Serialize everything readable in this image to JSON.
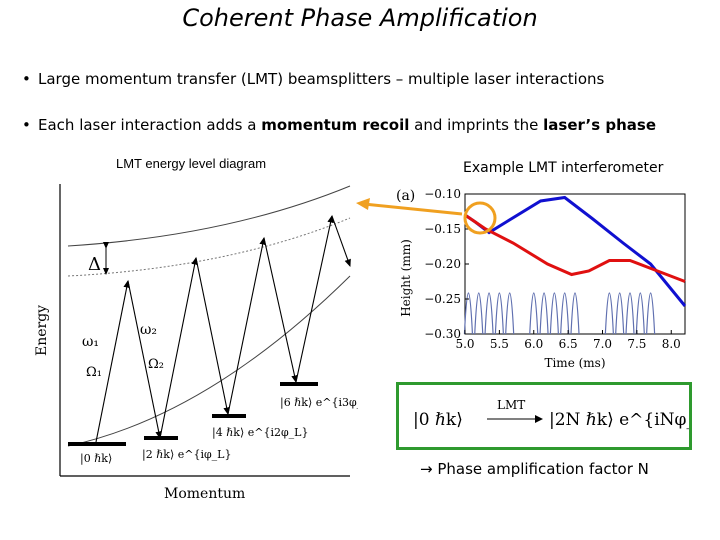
{
  "slide": {
    "title": "Coherent Phase Amplification",
    "bullet1": "Large momentum transfer (LMT) beamsplitters – multiple laser interactions",
    "bullet2_pre": "Each laser interaction adds a ",
    "bullet2_bold1": "momentum recoil",
    "bullet2_mid": " and imprints the ",
    "bullet2_bold2": "laser’s phase",
    "bullet_dot": "•",
    "caption_left": "LMT energy level diagram",
    "caption_right": "Example LMT interferometer",
    "amplification_text": "→ Phase amplification factor N"
  },
  "level_diagram": {
    "y_axis_label": "Energy",
    "x_axis_label": "Momentum",
    "delta_label": "Δ",
    "omega1": "ω₁",
    "omega2": "ω₂",
    "Omega1": "Ω₁",
    "Omega2": "Ω₂",
    "states": [
      "|0 ℏk⟩",
      "|2 ℏk⟩ e^{iφ_L}",
      "|4 ℏk⟩ e^{i2φ_L}",
      "|6 ℏk⟩ e^{i3φ_L}"
    ]
  },
  "formula": {
    "lhs": "|0 ℏk⟩",
    "arrow_label": "LMT",
    "rhs": "|2N ℏk⟩ e^{iNφ_L}"
  },
  "colors": {
    "highlight": "#f0a020",
    "box_border": "#2e9a2e",
    "series_blue": "#1010d0",
    "series_red": "#e01010",
    "pulses": "#6070b0"
  },
  "chart_data": {
    "type": "line",
    "panel_label": "(a)",
    "xlabel": "Time (ms)",
    "ylabel": "Height (mm)",
    "xlim": [
      5.0,
      8.2
    ],
    "ylim": [
      -0.3,
      -0.1
    ],
    "x_ticks": [
      5.0,
      5.5,
      6.0,
      6.5,
      7.0,
      7.5,
      8.0
    ],
    "y_ticks": [
      -0.1,
      -0.15,
      -0.2,
      -0.25,
      -0.3
    ],
    "series": [
      {
        "color": "#1010d0",
        "points": [
          [
            5.0,
            -0.13
          ],
          [
            5.15,
            -0.14
          ],
          [
            5.35,
            -0.155
          ],
          [
            5.6,
            -0.14
          ],
          [
            6.1,
            -0.11
          ],
          [
            6.45,
            -0.105
          ],
          [
            6.85,
            -0.135
          ],
          [
            7.3,
            -0.17
          ],
          [
            7.7,
            -0.2
          ],
          [
            8.2,
            -0.26
          ]
        ]
      },
      {
        "color": "#e01010",
        "points": [
          [
            5.0,
            -0.13
          ],
          [
            5.3,
            -0.15
          ],
          [
            5.7,
            -0.17
          ],
          [
            6.2,
            -0.2
          ],
          [
            6.55,
            -0.215
          ],
          [
            6.8,
            -0.21
          ],
          [
            7.1,
            -0.195
          ],
          [
            7.4,
            -0.195
          ],
          [
            7.8,
            -0.21
          ],
          [
            8.2,
            -0.225
          ]
        ]
      }
    ],
    "pulse_times": [
      5.05,
      5.2,
      5.35,
      5.5,
      5.65,
      6.0,
      6.15,
      6.3,
      6.45,
      6.6,
      7.1,
      7.25,
      7.4,
      7.55,
      7.7
    ]
  }
}
